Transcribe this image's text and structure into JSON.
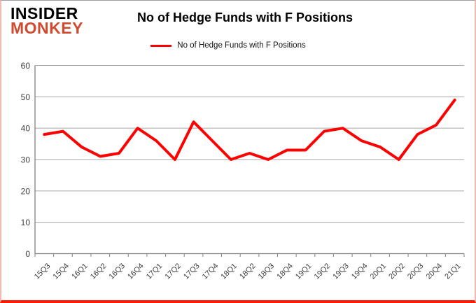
{
  "logo": {
    "line1": "INSIDER",
    "line2": "MONKEY",
    "line1_color": "#000000",
    "line2_color": "#cf4a2e"
  },
  "header": {
    "title": "No of Hedge Funds with F Positions"
  },
  "legend": {
    "label": "No of Hedge Funds with F Positions",
    "line_color": "#ff0000"
  },
  "chart_data": {
    "type": "line",
    "title": "No of Hedge Funds with F Positions",
    "categories": [
      "15Q3",
      "15Q4",
      "16Q1",
      "16Q2",
      "16Q3",
      "16Q4",
      "17Q1",
      "17Q2",
      "17Q3",
      "17Q4",
      "18Q1",
      "18Q2",
      "18Q3",
      "18Q4",
      "19Q1",
      "19Q2",
      "19Q3",
      "19Q4",
      "20Q1",
      "20Q2",
      "20Q3",
      "20Q4",
      "21Q1"
    ],
    "series": [
      {
        "name": "No of Hedge Funds with F Positions",
        "color": "#ff0000",
        "values": [
          38,
          39,
          34,
          31,
          32,
          40,
          36,
          30,
          42,
          36,
          30,
          32,
          30,
          33,
          33,
          39,
          40,
          36,
          34,
          30,
          38,
          41,
          49
        ]
      }
    ],
    "xlabel": "",
    "ylabel": "",
    "ylim": [
      0,
      60
    ],
    "ytick_step": 10,
    "grid": "horizontal",
    "legend_position": "top-center",
    "gridline_color": "#a6a6a6",
    "axis_color": "#808080",
    "tick_label_color": "#3f3f3f"
  }
}
